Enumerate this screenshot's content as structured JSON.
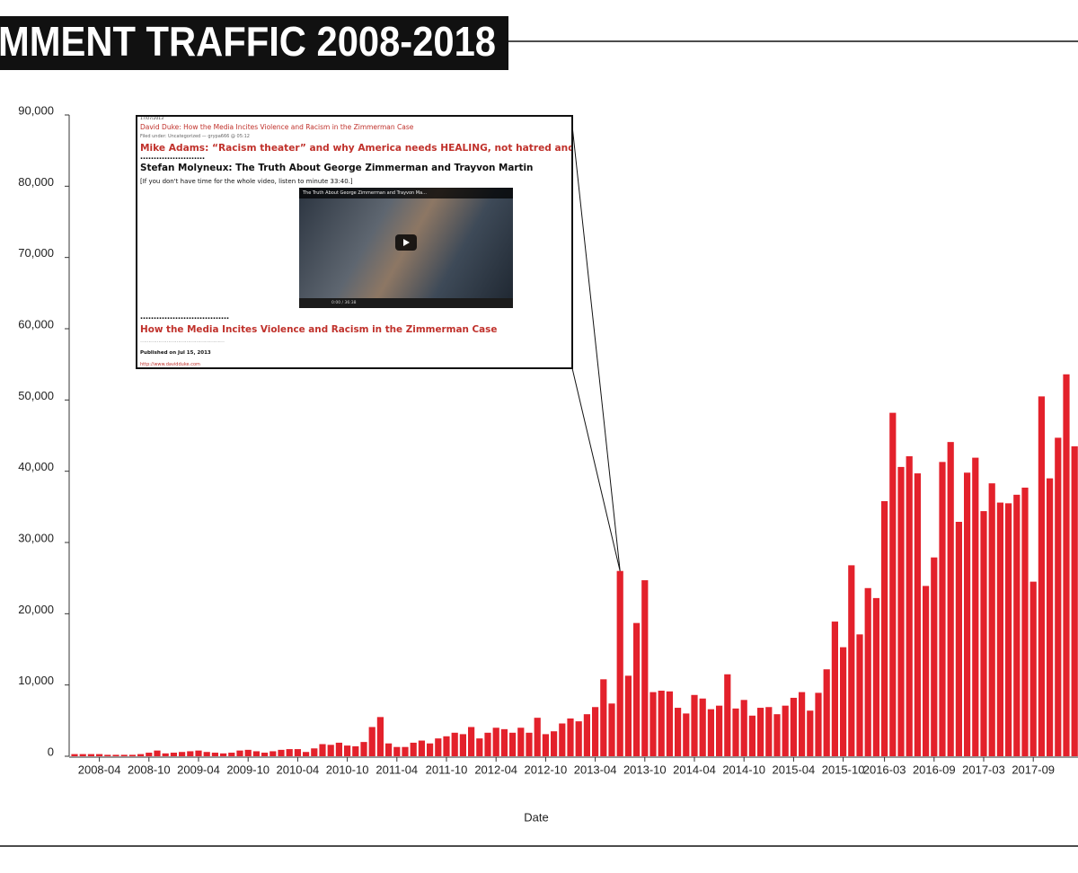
{
  "chart_data": {
    "type": "bar",
    "title": "MMENT TRAFFIC 2008-2018",
    "xlabel": "Date",
    "color": "#e3212b",
    "categories": [
      null,
      null,
      null,
      "2008-04",
      null,
      null,
      null,
      null,
      null,
      "2008-10",
      null,
      null,
      null,
      null,
      null,
      "2009-04",
      null,
      null,
      null,
      null,
      null,
      "2009-10",
      null,
      null,
      null,
      null,
      null,
      "2010-04",
      null,
      null,
      null,
      null,
      null,
      "2010-10",
      null,
      null,
      null,
      null,
      null,
      "2011-04",
      null,
      null,
      null,
      null,
      null,
      "2011-10",
      null,
      null,
      null,
      null,
      null,
      "2012-04",
      null,
      null,
      null,
      null,
      null,
      "2012-10",
      null,
      null,
      null,
      null,
      null,
      "2013-04",
      null,
      null,
      null,
      null,
      null,
      "2013-10",
      null,
      null,
      null,
      null,
      null,
      "2014-04",
      null,
      null,
      null,
      null,
      null,
      "2014-10",
      null,
      null,
      null,
      null,
      null,
      "2015-04",
      null,
      null,
      null,
      null,
      null,
      "2015-10",
      null,
      null,
      null,
      null,
      "2016-03",
      null,
      null,
      null,
      null,
      null,
      "2016-09",
      null,
      null,
      null,
      null,
      null,
      "2017-03",
      null,
      null,
      null,
      null,
      null,
      "2017-09",
      null,
      null,
      null,
      null,
      null
    ],
    "values": [
      300,
      300,
      300,
      300,
      200,
      200,
      200,
      200,
      300,
      500,
      800,
      400,
      500,
      600,
      700,
      800,
      600,
      500,
      400,
      500,
      800,
      900,
      700,
      500,
      700,
      900,
      1000,
      1000,
      600,
      1100,
      1700,
      1600,
      1900,
      1500,
      1400,
      2000,
      4100,
      5500,
      1800,
      1300,
      1300,
      1900,
      2200,
      1800,
      2500,
      2800,
      3300,
      3100,
      4100,
      2500,
      3300,
      4000,
      3800,
      3300,
      4000,
      3300,
      5400,
      3100,
      3500,
      4600,
      5300,
      4900,
      5900,
      6900,
      10800,
      7400,
      26000,
      11300,
      18700,
      24700,
      9000,
      9200,
      9100,
      6800,
      6000,
      8600,
      8100,
      6600,
      7100,
      11500,
      6700,
      7900,
      5700,
      6800,
      6900,
      5900,
      7100,
      8200,
      9000,
      6400,
      8900,
      12200,
      18900,
      15300,
      26800,
      17100,
      23600,
      22200,
      35800,
      48200,
      40600,
      42100,
      39700,
      23900,
      27900,
      41300,
      44100,
      32900,
      39800,
      41900,
      34400,
      38300,
      35600,
      35500,
      36700,
      37700,
      24500,
      50500,
      39000,
      44700,
      53600,
      43500
    ],
    "ylim": [
      0,
      90000
    ],
    "yticks": [
      0,
      {
        "value": 10000,
        "label": "10,000"
      },
      {
        "value": 20000,
        "label": "20,000"
      },
      {
        "value": 30000,
        "label": "30,000"
      },
      {
        "value": 40000,
        "label": "40,000"
      },
      {
        "value": 50000,
        "label": "50,000"
      },
      {
        "value": 60000,
        "label": "60,000"
      },
      {
        "value": 70000,
        "label": "70,000"
      },
      {
        "value": 80000,
        "label": "80,000"
      },
      {
        "value": 90000,
        "label": "90,000"
      }
    ],
    "grid": false
  },
  "inset": {
    "date": "17/07/2013",
    "post_title": "David Duke: How the Media Incites Violence and Racism in the Zimmerman Case",
    "filed": "Filed under: Uncategorized — grypa666 @ 05:12",
    "headline": "Mike Adams: “Racism theater” and why America needs HEALING, not hatred and division",
    "dots1": "……………………",
    "video_heading": "Stefan Molyneux: The Truth About George Zimmerman and Trayvon Martin",
    "note": "[If you don't have time for the whole video, listen to minute 33:40.]",
    "video_title": "The Truth About George Zimmerman and Trayvon Ma...",
    "video_time": "0:00 / 36:38",
    "dots2": "……………………………",
    "headline2": "How the Media Incites Violence and Racism in the Zimmerman Case",
    "published": "Published on Jul 15, 2013",
    "url": "http://www.davidduke.com"
  }
}
